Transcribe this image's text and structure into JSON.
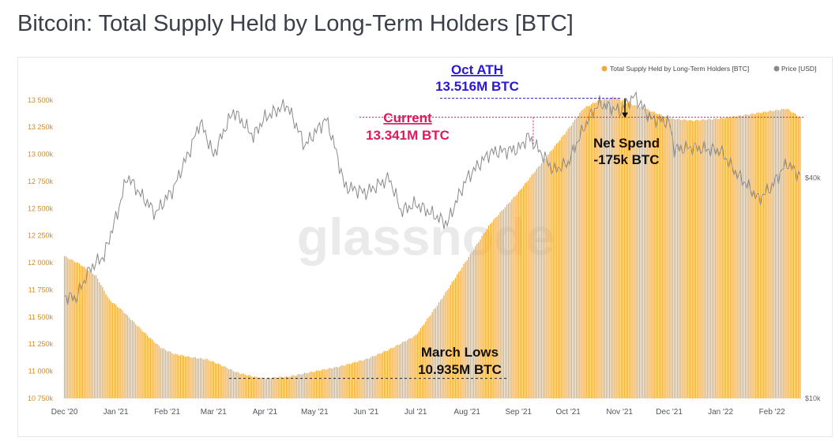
{
  "title": "Bitcoin: Total Supply Held by Long-Term Holders [BTC]",
  "watermark": "glassnode",
  "colors": {
    "supply": "#f2a93b",
    "price": "#8a8a8a",
    "ath": "#2b17d9",
    "current": "#e0185c",
    "axis_text": "#d98a1c",
    "price_axis_text": "#666666",
    "annotation_dark": "#111111"
  },
  "chart_data": {
    "type": "bar",
    "title": "Bitcoin: Total Supply Held by Long-Term Holders [BTC]",
    "x_ticks": [
      "Dec '20",
      "Jan '21",
      "Feb '21",
      "Mar '21",
      "Apr '21",
      "May '21",
      "Jun '21",
      "Jul '21",
      "Aug '21",
      "Sep '21",
      "Oct '21",
      "Nov '21",
      "Dec '21",
      "Jan '22",
      "Feb '22"
    ],
    "x_tick_dates": [
      "2020-12-01",
      "2021-01-01",
      "2021-02-01",
      "2021-03-01",
      "2021-04-01",
      "2021-05-01",
      "2021-06-01",
      "2021-07-01",
      "2021-08-01",
      "2021-09-01",
      "2021-10-01",
      "2021-11-01",
      "2021-12-01",
      "2022-01-01",
      "2022-02-01"
    ],
    "y_left_ticks": [
      "10 750k",
      "11 000k",
      "11 250k",
      "11 500k",
      "11 750k",
      "12 000k",
      "12 250k",
      "12 500k",
      "12 750k",
      "13 000k",
      "13 250k",
      "13 500k"
    ],
    "y_left_range": [
      10750000,
      13600000
    ],
    "y_right_ticks": [
      "$10k",
      "$40k"
    ],
    "y_right_scale": "log",
    "y_right_range": [
      10000,
      70000
    ],
    "legend_position": "top-right",
    "series": [
      {
        "name": "Total Supply Held by Long-Term Holders [BTC]",
        "type": "bar",
        "points": [
          [
            "2020-12-01",
            12060000
          ],
          [
            "2020-12-10",
            11990000
          ],
          [
            "2020-12-20",
            11880000
          ],
          [
            "2020-12-28",
            11660000
          ],
          [
            "2021-01-05",
            11560000
          ],
          [
            "2021-01-12",
            11450000
          ],
          [
            "2021-01-20",
            11330000
          ],
          [
            "2021-01-28",
            11220000
          ],
          [
            "2021-02-05",
            11160000
          ],
          [
            "2021-02-15",
            11130000
          ],
          [
            "2021-02-25",
            11110000
          ],
          [
            "2021-03-05",
            11060000
          ],
          [
            "2021-03-15",
            10990000
          ],
          [
            "2021-03-25",
            10950000
          ],
          [
            "2021-04-01",
            10935000
          ],
          [
            "2021-04-15",
            10950000
          ],
          [
            "2021-05-01",
            11000000
          ],
          [
            "2021-05-15",
            11040000
          ],
          [
            "2021-06-01",
            11110000
          ],
          [
            "2021-06-15",
            11200000
          ],
          [
            "2021-07-01",
            11330000
          ],
          [
            "2021-07-15",
            11630000
          ],
          [
            "2021-08-01",
            12030000
          ],
          [
            "2021-08-15",
            12360000
          ],
          [
            "2021-09-01",
            12650000
          ],
          [
            "2021-09-15",
            12920000
          ],
          [
            "2021-10-01",
            13230000
          ],
          [
            "2021-10-10",
            13420000
          ],
          [
            "2021-10-20",
            13500000
          ],
          [
            "2021-10-28",
            13516000
          ],
          [
            "2021-11-05",
            13470000
          ],
          [
            "2021-11-15",
            13430000
          ],
          [
            "2021-12-01",
            13330000
          ],
          [
            "2021-12-15",
            13310000
          ],
          [
            "2022-01-01",
            13330000
          ],
          [
            "2022-01-15",
            13360000
          ],
          [
            "2022-02-01",
            13400000
          ],
          [
            "2022-02-10",
            13420000
          ],
          [
            "2022-02-18",
            13341000
          ]
        ]
      },
      {
        "name": "Price [USD]",
        "type": "line",
        "points": [
          [
            "2020-12-01",
            19000
          ],
          [
            "2020-12-08",
            18800
          ],
          [
            "2020-12-17",
            22800
          ],
          [
            "2020-12-25",
            24500
          ],
          [
            "2021-01-02",
            32000
          ],
          [
            "2021-01-08",
            40500
          ],
          [
            "2021-01-15",
            36500
          ],
          [
            "2021-01-25",
            32000
          ],
          [
            "2021-02-05",
            37500
          ],
          [
            "2021-02-15",
            48000
          ],
          [
            "2021-02-21",
            57000
          ],
          [
            "2021-03-01",
            46000
          ],
          [
            "2021-03-13",
            61000
          ],
          [
            "2021-03-25",
            52000
          ],
          [
            "2021-04-01",
            58500
          ],
          [
            "2021-04-14",
            63500
          ],
          [
            "2021-04-25",
            49000
          ],
          [
            "2021-05-08",
            58000
          ],
          [
            "2021-05-19",
            38000
          ],
          [
            "2021-06-01",
            36500
          ],
          [
            "2021-06-15",
            40000
          ],
          [
            "2021-06-22",
            32500
          ],
          [
            "2021-07-01",
            34000
          ],
          [
            "2021-07-20",
            30000
          ],
          [
            "2021-08-01",
            40000
          ],
          [
            "2021-08-15",
            47000
          ],
          [
            "2021-09-01",
            48000
          ],
          [
            "2021-09-07",
            52000
          ],
          [
            "2021-09-22",
            42000
          ],
          [
            "2021-10-01",
            44000
          ],
          [
            "2021-10-15",
            60000
          ],
          [
            "2021-10-20",
            64000
          ],
          [
            "2021-11-01",
            61000
          ],
          [
            "2021-11-10",
            67000
          ],
          [
            "2021-11-20",
            58000
          ],
          [
            "2021-12-01",
            57000
          ],
          [
            "2021-12-04",
            48000
          ],
          [
            "2021-12-15",
            48500
          ],
          [
            "2022-01-01",
            47500
          ],
          [
            "2022-01-10",
            41500
          ],
          [
            "2022-01-24",
            35000
          ],
          [
            "2022-02-01",
            38000
          ],
          [
            "2022-02-10",
            44000
          ],
          [
            "2022-02-18",
            40500
          ]
        ]
      }
    ],
    "annotations": [
      {
        "label": "Oct ATH",
        "value_label": "13.516M BTC"
      },
      {
        "label": "Current",
        "value_label": "13.341M BTC"
      },
      {
        "label": "Net Spend",
        "value_label": "-175k BTC"
      },
      {
        "label": "March Lows",
        "value_label": "10.935M BTC"
      }
    ]
  }
}
